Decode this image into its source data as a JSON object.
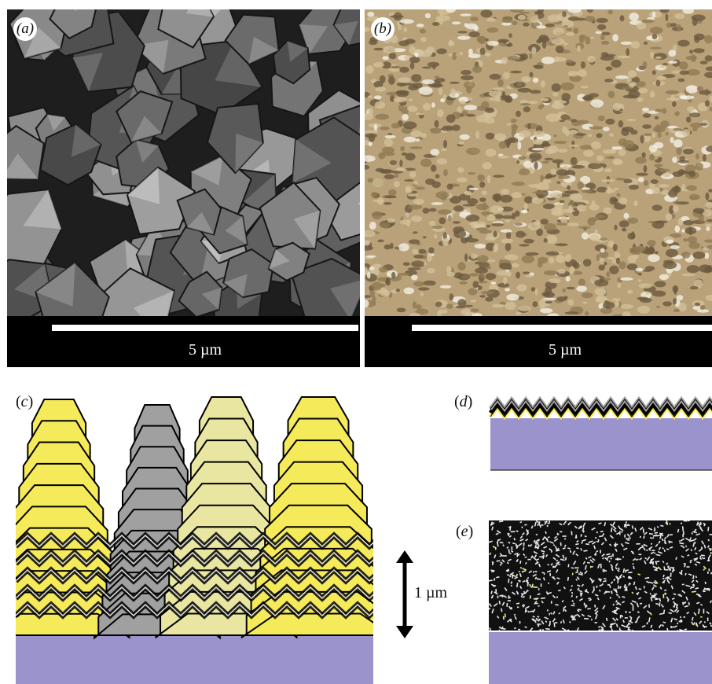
{
  "panels": {
    "a": {
      "label": "a",
      "scale_text": "5 µm"
    },
    "b": {
      "label": "b",
      "scale_text": "5 µm"
    },
    "c": {
      "label": "c",
      "scale_text": "1 µm"
    },
    "d": {
      "label": "d"
    },
    "e": {
      "label": "e"
    }
  },
  "colors": {
    "substrate": "#9b93cc",
    "yellow": "#f5ea5a",
    "pale_yellow": "#e8e6a0",
    "grey": "#a0a0a0",
    "black": "#000000",
    "sem_bg": "#1e1e1e",
    "afm": "#b9a27a"
  }
}
